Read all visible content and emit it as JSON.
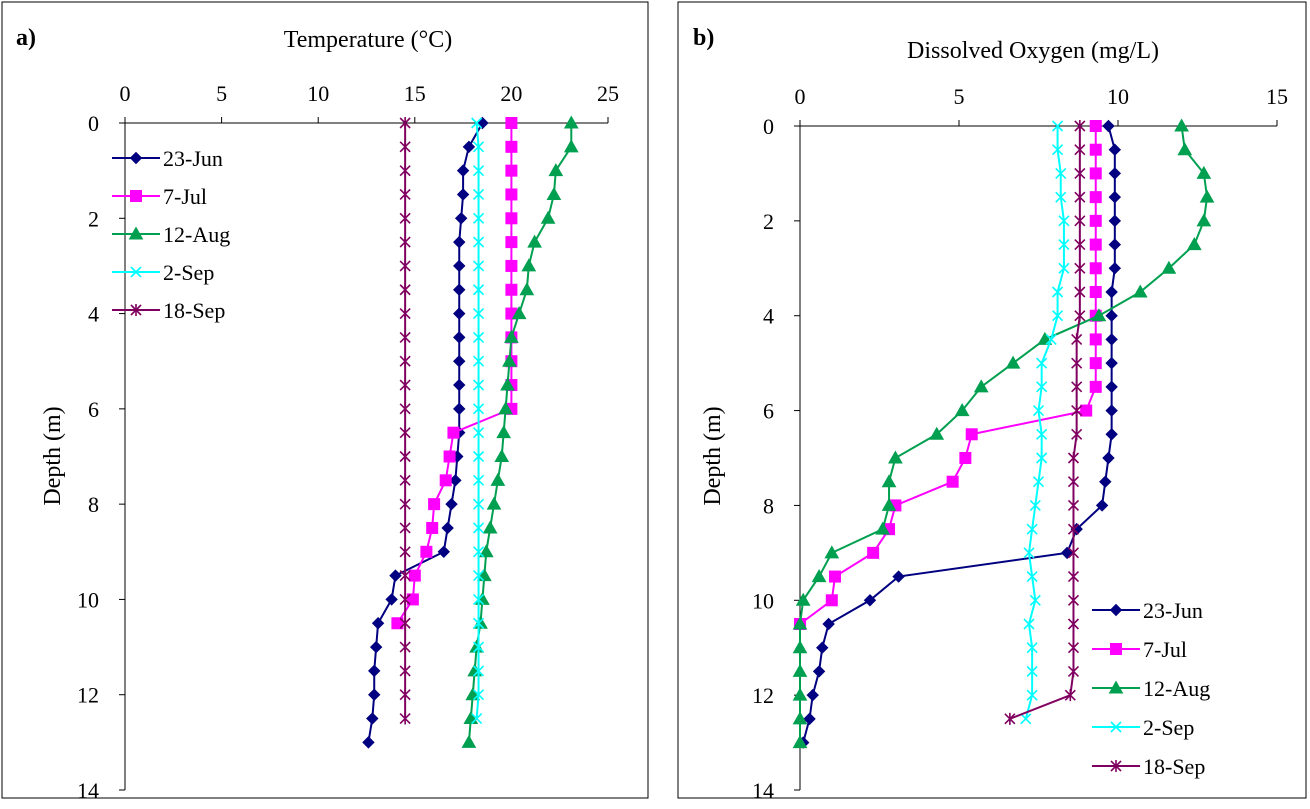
{
  "chart_data": [
    {
      "panel_label": "a)",
      "type": "line",
      "title": "",
      "xlabel": "Temperature (°C)",
      "ylabel": "Depth (m)",
      "xlim": [
        0,
        25
      ],
      "ylim": [
        0,
        14
      ],
      "x_axis_position": "top",
      "y_inverted": true,
      "x_ticks": [
        0,
        5,
        10,
        15,
        20,
        25
      ],
      "y_ticks": [
        0,
        2,
        4,
        6,
        8,
        10,
        12,
        14
      ],
      "grid": false,
      "legend_position": "top-left",
      "depth": [
        0,
        0.5,
        1,
        1.5,
        2,
        2.5,
        3,
        3.5,
        4,
        4.5,
        5,
        5.5,
        6,
        6.5,
        7,
        7.5,
        8,
        8.5,
        9,
        9.5,
        10,
        10.5,
        11,
        11.5,
        12,
        12.5,
        13
      ],
      "series": [
        {
          "name": "23-Jun",
          "color": "#000080",
          "marker": "diamond",
          "x": [
            18.5,
            17.8,
            17.5,
            17.5,
            17.4,
            17.3,
            17.3,
            17.3,
            17.3,
            17.3,
            17.3,
            17.3,
            17.3,
            17.3,
            17.2,
            17.1,
            16.9,
            16.7,
            16.5,
            14.0,
            13.8,
            13.1,
            13.0,
            12.9,
            12.9,
            12.8,
            12.6
          ]
        },
        {
          "name": "7-Jul",
          "color": "#FF00FF",
          "marker": "square",
          "x": [
            20.0,
            20.0,
            20.0,
            20.0,
            20.0,
            20.0,
            20.0,
            20.0,
            20.0,
            20.0,
            20.0,
            20.0,
            20.0,
            17.0,
            16.8,
            16.6,
            16.0,
            15.9,
            15.6,
            15.0,
            14.9,
            14.1
          ]
        },
        {
          "name": "12-Aug",
          "color": "#00A050",
          "marker": "triangle",
          "x": [
            23.1,
            23.1,
            22.3,
            22.2,
            21.9,
            21.2,
            20.9,
            20.8,
            20.4,
            20.0,
            19.9,
            19.8,
            19.7,
            19.6,
            19.5,
            19.3,
            19.1,
            18.9,
            18.7,
            18.6,
            18.5,
            18.4,
            18.2,
            18.1,
            18.0,
            17.9,
            17.8
          ]
        },
        {
          "name": "2-Sep",
          "color": "#00FFFF",
          "marker": "x",
          "x": [
            18.2,
            18.3,
            18.3,
            18.3,
            18.3,
            18.3,
            18.3,
            18.3,
            18.3,
            18.3,
            18.3,
            18.3,
            18.3,
            18.3,
            18.3,
            18.3,
            18.3,
            18.3,
            18.3,
            18.3,
            18.3,
            18.3,
            18.3,
            18.3,
            18.3,
            18.2
          ]
        },
        {
          "name": "18-Sep",
          "color": "#800060",
          "marker": "asterisk",
          "x": [
            14.5,
            14.5,
            14.5,
            14.5,
            14.5,
            14.5,
            14.5,
            14.5,
            14.5,
            14.5,
            14.5,
            14.5,
            14.5,
            14.5,
            14.5,
            14.5,
            14.5,
            14.5,
            14.5,
            14.5,
            14.5,
            14.5,
            14.5,
            14.5,
            14.5,
            14.5
          ]
        }
      ]
    },
    {
      "panel_label": "b)",
      "type": "line",
      "title": "",
      "xlabel": "Dissolved Oxygen (mg/L)",
      "ylabel": "Depth (m)",
      "xlim": [
        0,
        15
      ],
      "ylim": [
        0,
        14
      ],
      "x_axis_position": "top",
      "y_inverted": true,
      "x_ticks": [
        0,
        5,
        10,
        15
      ],
      "y_ticks": [
        0,
        2,
        4,
        6,
        8,
        10,
        12,
        14
      ],
      "grid": false,
      "legend_position": "bottom-right",
      "depth": [
        0,
        0.5,
        1,
        1.5,
        2,
        2.5,
        3,
        3.5,
        4,
        4.5,
        5,
        5.5,
        6,
        6.5,
        7,
        7.5,
        8,
        8.5,
        9,
        9.5,
        10,
        10.5,
        11,
        11.5,
        12,
        12.5,
        13
      ],
      "series": [
        {
          "name": "23-Jun",
          "color": "#000080",
          "marker": "diamond",
          "x": [
            9.7,
            9.9,
            9.9,
            9.9,
            9.9,
            9.9,
            9.9,
            9.8,
            9.8,
            9.8,
            9.8,
            9.8,
            9.8,
            9.8,
            9.7,
            9.6,
            9.5,
            8.7,
            8.4,
            3.1,
            2.2,
            0.9,
            0.7,
            0.6,
            0.4,
            0.3,
            0.1
          ]
        },
        {
          "name": "7-Jul",
          "color": "#FF00FF",
          "marker": "square",
          "x": [
            9.3,
            9.3,
            9.3,
            9.3,
            9.3,
            9.3,
            9.3,
            9.3,
            9.3,
            9.3,
            9.3,
            9.3,
            9.0,
            5.4,
            5.2,
            4.8,
            3.0,
            2.8,
            2.3,
            1.1,
            1.0,
            0.0
          ]
        },
        {
          "name": "12-Aug",
          "color": "#00A050",
          "marker": "triangle",
          "x": [
            12.0,
            12.1,
            12.7,
            12.8,
            12.7,
            12.4,
            11.6,
            10.7,
            9.4,
            7.7,
            6.7,
            5.7,
            5.1,
            4.3,
            3.0,
            2.8,
            2.8,
            2.6,
            1.0,
            0.6,
            0.1,
            0.0,
            0.0,
            0.0,
            0.0,
            0.0,
            0.0
          ]
        },
        {
          "name": "2-Sep",
          "color": "#00FFFF",
          "marker": "x",
          "x": [
            8.1,
            8.1,
            8.2,
            8.2,
            8.3,
            8.3,
            8.3,
            8.1,
            8.1,
            7.9,
            7.6,
            7.6,
            7.5,
            7.6,
            7.6,
            7.5,
            7.4,
            7.3,
            7.2,
            7.3,
            7.4,
            7.2,
            7.3,
            7.3,
            7.3,
            7.1
          ]
        },
        {
          "name": "18-Sep",
          "color": "#800060",
          "marker": "asterisk",
          "x": [
            8.8,
            8.8,
            8.8,
            8.8,
            8.8,
            8.8,
            8.8,
            8.8,
            8.8,
            8.7,
            8.7,
            8.7,
            8.7,
            8.7,
            8.6,
            8.6,
            8.6,
            8.6,
            8.6,
            8.6,
            8.6,
            8.6,
            8.6,
            8.6,
            8.5,
            6.6
          ]
        }
      ]
    }
  ]
}
